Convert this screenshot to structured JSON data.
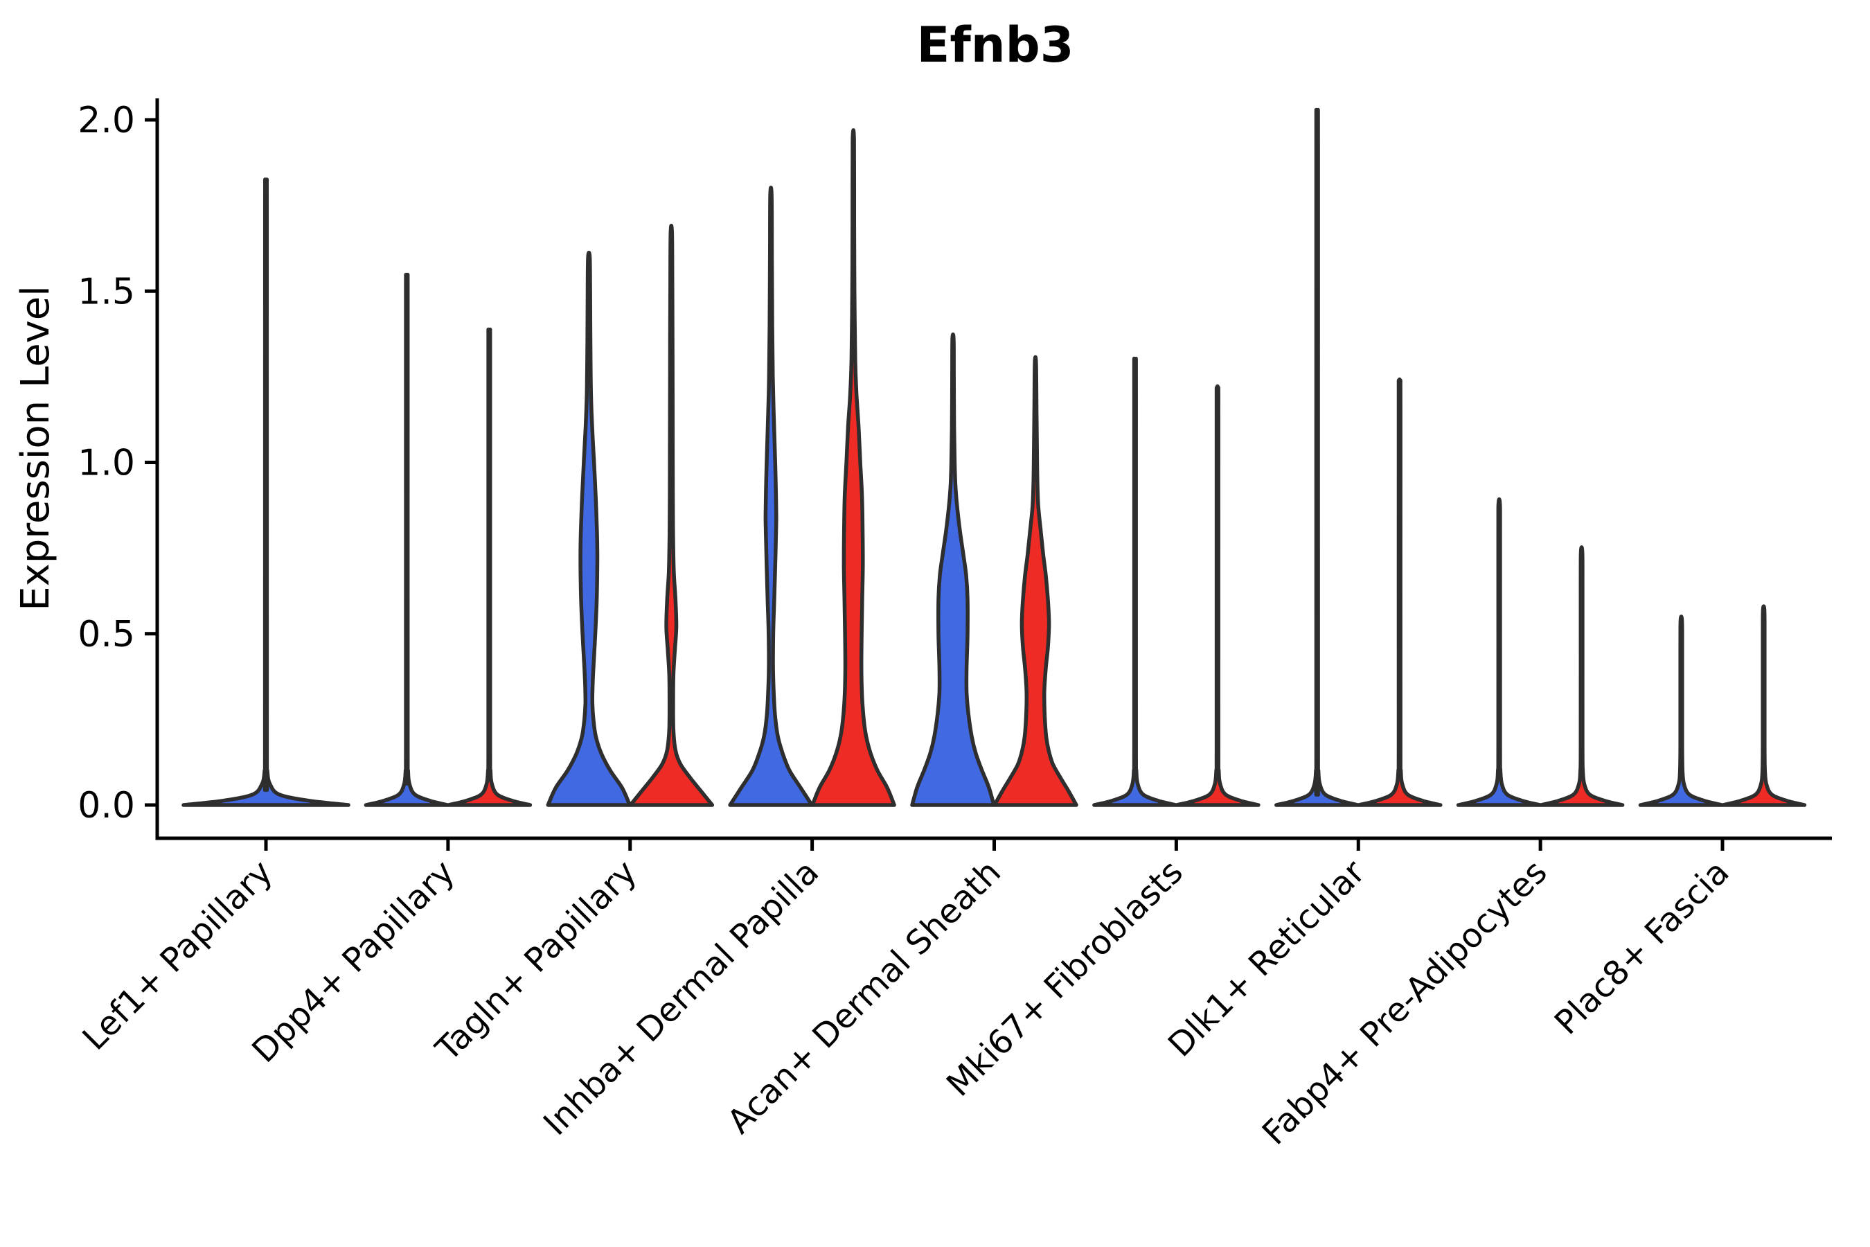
{
  "title": "Efnb3",
  "ylabel": "Expression Level",
  "chart_data": {
    "type": "violin",
    "title": "Efnb3",
    "xlabel": "",
    "ylabel": "Expression Level",
    "ylim": [
      -0.1,
      2.06
    ],
    "yticks": [
      0.0,
      0.5,
      1.0,
      1.5,
      2.0
    ],
    "ytick_labels": [
      "0.0",
      "0.5",
      "1.0",
      "1.5",
      "2.0"
    ],
    "grid": "off",
    "legend": "none",
    "groups": [
      {
        "id": "blue",
        "color": "#4169E1"
      },
      {
        "id": "red",
        "color": "#EE2B24"
      }
    ],
    "colors": {
      "outline": "#2E2E2E",
      "axis": "#000000"
    },
    "categories": [
      {
        "label": "Lef1+ Papillary",
        "violins": [
          {
            "side": "center",
            "group": "blue",
            "max": 1.78,
            "profile": [
              [
                0,
                119
              ],
              [
                0.012,
                64
              ],
              [
                0.03,
                20
              ],
              [
                0.06,
                6
              ],
              [
                0.1,
                2
              ],
              [
                0.18,
                1.4
              ],
              [
                1.68,
                1.3
              ],
              [
                1.78,
                1
              ]
            ]
          }
        ]
      },
      {
        "label": "Dpp4+ Papillary",
        "violins": [
          {
            "side": "left",
            "group": "blue",
            "max": 1.52,
            "profile": [
              [
                0,
                59
              ],
              [
                0.012,
                34
              ],
              [
                0.03,
                12
              ],
              [
                0.06,
                4
              ],
              [
                0.1,
                1.8
              ],
              [
                0.18,
                1.3
              ],
              [
                1.42,
                1.3
              ],
              [
                1.52,
                1
              ]
            ]
          },
          {
            "side": "right",
            "group": "red",
            "max": 1.37,
            "profile": [
              [
                0,
                59
              ],
              [
                0.012,
                34
              ],
              [
                0.03,
                12
              ],
              [
                0.06,
                4
              ],
              [
                0.1,
                1.8
              ],
              [
                0.18,
                1.3
              ],
              [
                1.27,
                1.3
              ],
              [
                1.37,
                1
              ]
            ]
          }
        ]
      },
      {
        "label": "Tagln+ Papillary",
        "violins": [
          {
            "side": "left",
            "group": "blue",
            "max": 1.6,
            "profile": [
              [
                0,
                59
              ],
              [
                0.05,
                48
              ],
              [
                0.1,
                31
              ],
              [
                0.15,
                18
              ],
              [
                0.2,
                10
              ],
              [
                0.25,
                6.5
              ],
              [
                0.3,
                5
              ],
              [
                0.35,
                5.4
              ],
              [
                0.4,
                6.5
              ],
              [
                0.5,
                9.2
              ],
              [
                0.6,
                11.3
              ],
              [
                0.72,
                12.2
              ],
              [
                0.8,
                11.6
              ],
              [
                0.9,
                9.8
              ],
              [
                1.0,
                7.4
              ],
              [
                1.1,
                4.8
              ],
              [
                1.2,
                3
              ],
              [
                1.35,
                2.2
              ],
              [
                1.5,
                1.8
              ],
              [
                1.6,
                1.2
              ]
            ]
          },
          {
            "side": "right",
            "group": "red",
            "max": 1.67,
            "profile": [
              [
                0,
                59
              ],
              [
                0.04,
                43
              ],
              [
                0.08,
                27
              ],
              [
                0.12,
                13
              ],
              [
                0.16,
                6
              ],
              [
                0.22,
                3
              ],
              [
                0.3,
                2.6
              ],
              [
                0.38,
                3
              ],
              [
                0.45,
                5
              ],
              [
                0.52,
                7.2
              ],
              [
                0.6,
                6
              ],
              [
                0.68,
                3.6
              ],
              [
                0.78,
                2.6
              ],
              [
                0.9,
                2.2
              ],
              [
                1.1,
                2
              ],
              [
                1.3,
                1.8
              ],
              [
                1.5,
                1.5
              ],
              [
                1.67,
                1
              ]
            ]
          }
        ]
      },
      {
        "label": "Inhba+ Dermal Papilla",
        "violins": [
          {
            "side": "left",
            "group": "blue",
            "max": 1.78,
            "profile": [
              [
                0,
                59
              ],
              [
                0.05,
                43
              ],
              [
                0.1,
                27
              ],
              [
                0.15,
                17
              ],
              [
                0.2,
                10
              ],
              [
                0.26,
                6
              ],
              [
                0.32,
                4.2
              ],
              [
                0.4,
                3
              ],
              [
                0.5,
                3.3
              ],
              [
                0.6,
                4.8
              ],
              [
                0.7,
                6.2
              ],
              [
                0.8,
                7.4
              ],
              [
                0.85,
                7.7
              ],
              [
                0.95,
                6.8
              ],
              [
                1.05,
                5.4
              ],
              [
                1.15,
                3.9
              ],
              [
                1.25,
                2.7
              ],
              [
                1.4,
                1.9
              ],
              [
                1.6,
                1.4
              ],
              [
                1.78,
                1
              ]
            ]
          },
          {
            "side": "right",
            "group": "red",
            "max": 1.94,
            "profile": [
              [
                0,
                59
              ],
              [
                0.05,
                49
              ],
              [
                0.1,
                35
              ],
              [
                0.15,
                25
              ],
              [
                0.2,
                18.5
              ],
              [
                0.25,
                15
              ],
              [
                0.32,
                12.5
              ],
              [
                0.4,
                11.6
              ],
              [
                0.5,
                12
              ],
              [
                0.6,
                12.8
              ],
              [
                0.7,
                13.7
              ],
              [
                0.8,
                13.4
              ],
              [
                0.9,
                12.5
              ],
              [
                1.0,
                10
              ],
              [
                1.1,
                7.7
              ],
              [
                1.2,
                4.5
              ],
              [
                1.3,
                2.7
              ],
              [
                1.5,
                1.6
              ],
              [
                1.7,
                1.2
              ],
              [
                1.94,
                1
              ]
            ]
          }
        ]
      },
      {
        "label": "Acan+ Dermal Sheath",
        "violins": [
          {
            "side": "left",
            "group": "blue",
            "max": 1.36,
            "profile": [
              [
                0,
                59
              ],
              [
                0.05,
                52
              ],
              [
                0.1,
                42
              ],
              [
                0.15,
                33
              ],
              [
                0.2,
                27
              ],
              [
                0.27,
                22
              ],
              [
                0.33,
                19.6
              ],
              [
                0.4,
                19.6
              ],
              [
                0.5,
                21
              ],
              [
                0.6,
                21
              ],
              [
                0.67,
                19
              ],
              [
                0.73,
                15
              ],
              [
                0.8,
                10
              ],
              [
                0.87,
                6
              ],
              [
                0.93,
                3.6
              ],
              [
                1.0,
                2.4
              ],
              [
                1.1,
                1.6
              ],
              [
                1.25,
                1.2
              ],
              [
                1.36,
                0.9
              ]
            ]
          },
          {
            "side": "right",
            "group": "red",
            "max": 1.29,
            "profile": [
              [
                0,
                59
              ],
              [
                0.04,
                48
              ],
              [
                0.08,
                36
              ],
              [
                0.12,
                25
              ],
              [
                0.16,
                19
              ],
              [
                0.2,
                15.5
              ],
              [
                0.26,
                13.4
              ],
              [
                0.33,
                12.8
              ],
              [
                0.4,
                15
              ],
              [
                0.46,
                18
              ],
              [
                0.53,
                19.6
              ],
              [
                0.6,
                18
              ],
              [
                0.67,
                15
              ],
              [
                0.73,
                11.3
              ],
              [
                0.8,
                7.7
              ],
              [
                0.87,
                4.2
              ],
              [
                0.93,
                3
              ],
              [
                1.0,
                2.4
              ],
              [
                1.15,
                1.6
              ],
              [
                1.29,
                0.9
              ]
            ]
          }
        ]
      },
      {
        "label": "Mki67+ Fibroblasts",
        "violins": [
          {
            "side": "left",
            "group": "blue",
            "max": 1.29,
            "profile": [
              [
                0,
                59
              ],
              [
                0.012,
                34
              ],
              [
                0.03,
                12
              ],
              [
                0.06,
                4
              ],
              [
                0.1,
                1.8
              ],
              [
                0.18,
                1.3
              ],
              [
                1.19,
                1.3
              ],
              [
                1.29,
                1
              ]
            ]
          },
          {
            "side": "right",
            "group": "red",
            "max": 1.21,
            "profile": [
              [
                0,
                59
              ],
              [
                0.012,
                34
              ],
              [
                0.03,
                12
              ],
              [
                0.06,
                4
              ],
              [
                0.1,
                1.8
              ],
              [
                0.18,
                1.3
              ],
              [
                1.11,
                1.3
              ],
              [
                1.21,
                1
              ]
            ]
          }
        ]
      },
      {
        "label": "Dlk1+ Reticular",
        "violins": [
          {
            "side": "left",
            "group": "blue",
            "max": 1.97,
            "profile": [
              [
                0,
                59
              ],
              [
                0.012,
                34
              ],
              [
                0.03,
                12
              ],
              [
                0.06,
                4
              ],
              [
                0.1,
                1.8
              ],
              [
                0.18,
                1.3
              ],
              [
                1.87,
                1.3
              ],
              [
                1.97,
                1
              ]
            ]
          },
          {
            "side": "right",
            "group": "red",
            "max": 1.23,
            "profile": [
              [
                0,
                59
              ],
              [
                0.012,
                34
              ],
              [
                0.03,
                12
              ],
              [
                0.06,
                4
              ],
              [
                0.1,
                1.8
              ],
              [
                0.18,
                1.3
              ],
              [
                1.13,
                1.3
              ],
              [
                1.23,
                1
              ]
            ]
          }
        ]
      },
      {
        "label": "Fabp4+ Pre-Adipocytes",
        "violins": [
          {
            "side": "left",
            "group": "blue",
            "max": 0.88,
            "profile": [
              [
                0,
                59
              ],
              [
                0.012,
                34
              ],
              [
                0.03,
                12
              ],
              [
                0.06,
                4
              ],
              [
                0.1,
                1.8
              ],
              [
                0.18,
                1.3
              ],
              [
                0.78,
                1.3
              ],
              [
                0.88,
                1
              ]
            ]
          },
          {
            "side": "right",
            "group": "red",
            "max": 0.74,
            "profile": [
              [
                0,
                59
              ],
              [
                0.012,
                34
              ],
              [
                0.03,
                12
              ],
              [
                0.06,
                4
              ],
              [
                0.1,
                1.8
              ],
              [
                0.18,
                1.3
              ],
              [
                0.64,
                1.3
              ],
              [
                0.74,
                1
              ]
            ]
          }
        ]
      },
      {
        "label": "Plac8+ Fascia",
        "violins": [
          {
            "side": "left",
            "group": "blue",
            "max": 0.54,
            "profile": [
              [
                0,
                59
              ],
              [
                0.012,
                34
              ],
              [
                0.03,
                12
              ],
              [
                0.06,
                4
              ],
              [
                0.1,
                1.8
              ],
              [
                0.18,
                1.3
              ],
              [
                0.46,
                1.3
              ],
              [
                0.54,
                1
              ]
            ]
          },
          {
            "side": "right",
            "group": "red",
            "max": 0.57,
            "profile": [
              [
                0,
                59
              ],
              [
                0.012,
                34
              ],
              [
                0.03,
                12
              ],
              [
                0.06,
                4
              ],
              [
                0.1,
                1.8
              ],
              [
                0.18,
                1.3
              ],
              [
                0.49,
                1.3
              ],
              [
                0.57,
                1
              ]
            ]
          }
        ]
      }
    ]
  }
}
